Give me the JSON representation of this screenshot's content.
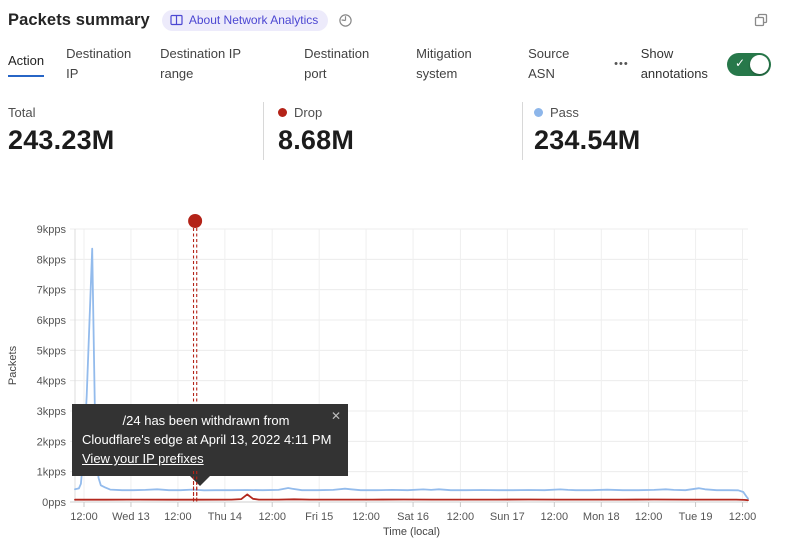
{
  "header": {
    "title": "Packets summary",
    "badge_label": "About Network Analytics"
  },
  "tabs": {
    "items": [
      {
        "label": "Action",
        "active": true
      },
      {
        "label": "Destination IP",
        "active": false
      },
      {
        "label": "Destination IP range",
        "active": false
      },
      {
        "label": "Destination port",
        "active": false
      },
      {
        "label": "Mitigation system",
        "active": false
      },
      {
        "label": "Source ASN",
        "active": false
      }
    ],
    "more_label": "•••",
    "annotations_toggle": {
      "label": "Show annotations",
      "on": true,
      "color": "#27784a",
      "check_icon": "✓"
    }
  },
  "stats": {
    "items": [
      {
        "label": "Total",
        "value": "243.23M"
      },
      {
        "label": "Drop",
        "value": "8.68M",
        "dot_color": "#b42318"
      },
      {
        "label": "Pass",
        "value": "234.54M",
        "dot_color": "#8db6ea"
      }
    ]
  },
  "chart_data": {
    "type": "line",
    "xlabel": "Time (local)",
    "ylabel": "Packets",
    "y_unit": "pps",
    "ylim": [
      0,
      9000
    ],
    "y_ticks": [
      "0pps",
      "1kpps",
      "2kpps",
      "3kpps",
      "4kpps",
      "5kpps",
      "6kpps",
      "7kpps",
      "8kpps",
      "9kpps"
    ],
    "x_range_hours": [
      0,
      172
    ],
    "x_ticks": [
      {
        "t": 2.3,
        "label": "12:00"
      },
      {
        "t": 14.3,
        "label": "Wed 13"
      },
      {
        "t": 26.3,
        "label": "12:00"
      },
      {
        "t": 38.3,
        "label": "Thu 14"
      },
      {
        "t": 50.4,
        "label": "12:00"
      },
      {
        "t": 62.4,
        "label": "Fri 15"
      },
      {
        "t": 74.4,
        "label": "12:00"
      },
      {
        "t": 86.4,
        "label": "Sat 16"
      },
      {
        "t": 98.5,
        "label": "12:00"
      },
      {
        "t": 110.5,
        "label": "Sun 17"
      },
      {
        "t": 122.5,
        "label": "12:00"
      },
      {
        "t": 134.5,
        "label": "Mon 18"
      },
      {
        "t": 146.6,
        "label": "12:00"
      },
      {
        "t": 158.6,
        "label": "Tue 19"
      },
      {
        "t": 170.6,
        "label": "12:00"
      }
    ],
    "grid": true,
    "series": [
      {
        "name": "Drop",
        "color": "#b3281e",
        "points": [
          [
            0,
            75
          ],
          [
            8,
            75
          ],
          [
            16,
            78
          ],
          [
            24,
            75
          ],
          [
            32,
            76
          ],
          [
            40,
            78
          ],
          [
            42.5,
            95
          ],
          [
            44,
            250
          ],
          [
            45.5,
            105
          ],
          [
            47,
            80
          ],
          [
            52,
            78
          ],
          [
            56,
            90
          ],
          [
            60,
            80
          ],
          [
            68,
            78
          ],
          [
            76,
            80
          ],
          [
            84,
            82
          ],
          [
            92,
            78
          ],
          [
            100,
            80
          ],
          [
            108,
            78
          ],
          [
            116,
            82
          ],
          [
            124,
            78
          ],
          [
            132,
            80
          ],
          [
            140,
            78
          ],
          [
            148,
            82
          ],
          [
            156,
            78
          ],
          [
            164,
            80
          ],
          [
            169,
            78
          ],
          [
            171,
            70
          ],
          [
            172,
            58
          ]
        ]
      },
      {
        "name": "Pass",
        "color": "#93bbec",
        "points": [
          [
            0,
            420
          ],
          [
            1,
            450
          ],
          [
            1.5,
            600
          ],
          [
            2.2,
            1600
          ],
          [
            3,
            3500
          ],
          [
            4.4,
            8350
          ],
          [
            5.2,
            2200
          ],
          [
            6,
            800
          ],
          [
            6.6,
            550
          ],
          [
            7.7,
            480
          ],
          [
            9,
            410
          ],
          [
            12,
            390
          ],
          [
            15,
            390
          ],
          [
            18,
            400
          ],
          [
            21,
            420
          ],
          [
            24,
            390
          ],
          [
            27,
            390
          ],
          [
            30,
            410
          ],
          [
            33,
            385
          ],
          [
            36,
            390
          ],
          [
            40,
            390
          ],
          [
            44,
            395
          ],
          [
            48,
            390
          ],
          [
            52,
            400
          ],
          [
            54.5,
            460
          ],
          [
            55.5,
            440
          ],
          [
            58,
            390
          ],
          [
            62,
            390
          ],
          [
            66,
            400
          ],
          [
            69,
            440
          ],
          [
            70.5,
            420
          ],
          [
            73,
            390
          ],
          [
            77,
            390
          ],
          [
            81,
            400
          ],
          [
            85,
            390
          ],
          [
            89,
            415
          ],
          [
            91,
            400
          ],
          [
            93,
            420
          ],
          [
            96,
            390
          ],
          [
            100,
            390
          ],
          [
            104,
            395
          ],
          [
            108,
            390
          ],
          [
            112,
            390
          ],
          [
            116,
            395
          ],
          [
            120,
            390
          ],
          [
            124,
            415
          ],
          [
            126,
            400
          ],
          [
            128,
            390
          ],
          [
            132,
            390
          ],
          [
            136,
            405
          ],
          [
            140,
            390
          ],
          [
            144,
            390
          ],
          [
            148,
            400
          ],
          [
            151,
            420
          ],
          [
            153,
            400
          ],
          [
            156,
            390
          ],
          [
            159.5,
            455
          ],
          [
            161,
            420
          ],
          [
            164,
            390
          ],
          [
            167,
            390
          ],
          [
            169.5,
            385
          ],
          [
            170.8,
            330
          ],
          [
            171.6,
            180
          ],
          [
            172,
            115
          ]
        ]
      }
    ],
    "annotation": {
      "t": 30.7,
      "color": "#b32318",
      "tooltip": {
        "line1": "/24 has been withdrawn from",
        "line2": "Cloudflare's edge at April 13, 2022 4:11 PM",
        "link": "View your IP prefixes",
        "close_icon": "✕"
      }
    }
  }
}
